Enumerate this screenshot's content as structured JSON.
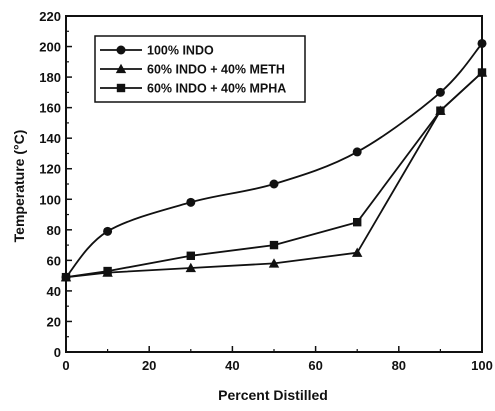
{
  "chart_data": {
    "type": "line",
    "title": "",
    "xlabel": "Percent Distilled",
    "ylabel": "Temperature (°C)",
    "xlim": [
      0,
      100
    ],
    "ylim": [
      0,
      220
    ],
    "xticks": [
      0,
      20,
      40,
      60,
      80,
      100
    ],
    "yticks": [
      0,
      20,
      40,
      60,
      80,
      100,
      120,
      140,
      160,
      180,
      200,
      220
    ],
    "grid": false,
    "legend_position": "top-left",
    "series": [
      {
        "name": "100% INDO",
        "marker": "circle",
        "smooth": true,
        "x": [
          0,
          10,
          30,
          50,
          70,
          90,
          100
        ],
        "y": [
          49,
          79,
          98,
          110,
          131,
          170,
          202
        ]
      },
      {
        "name": "60% INDO + 40% METH",
        "marker": "triangle",
        "smooth": false,
        "x": [
          0,
          10,
          30,
          50,
          70,
          90,
          100
        ],
        "y": [
          49,
          52,
          55,
          58,
          65,
          158,
          183
        ]
      },
      {
        "name": "60% INDO + 40% MPHA",
        "marker": "square",
        "smooth": false,
        "x": [
          0,
          10,
          30,
          50,
          70,
          90,
          100
        ],
        "y": [
          49,
          53,
          63,
          70,
          85,
          158,
          183
        ]
      }
    ]
  }
}
